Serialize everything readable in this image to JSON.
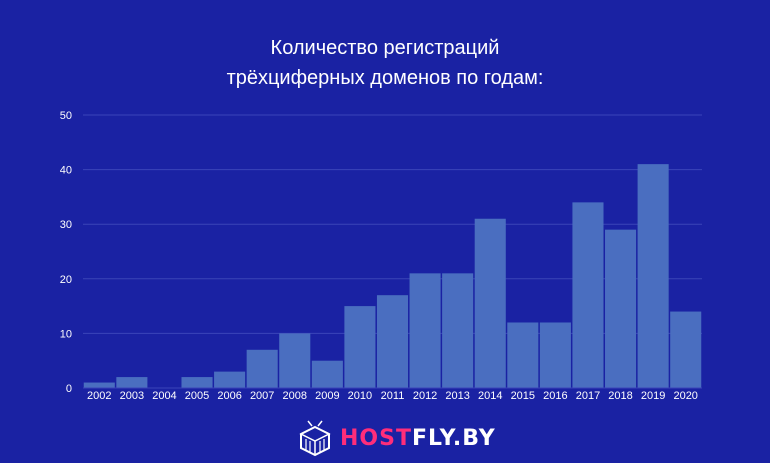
{
  "title_line1": "Количество регистраций",
  "title_line2": "трёхциферных доменов по годам:",
  "logo": {
    "part1": "HOST",
    "part2": "FLY.BY",
    "icon": "box-logo-icon"
  },
  "colors": {
    "background": "#1a22a3",
    "bar": "#4a6ec0",
    "grid": "#3a44b8",
    "text": "#ffffff"
  },
  "chart_data": {
    "type": "bar",
    "title": "Количество регистраций трёхциферных доменов по годам:",
    "categories": [
      "2002",
      "2003",
      "2004",
      "2005",
      "2006",
      "2007",
      "2008",
      "2009",
      "2010",
      "2011",
      "2012",
      "2013",
      "2014",
      "2015",
      "2016",
      "2017",
      "2018",
      "2019",
      "2020"
    ],
    "values": [
      1,
      2,
      0,
      2,
      3,
      7,
      10,
      5,
      15,
      17,
      21,
      21,
      31,
      12,
      12,
      34,
      29,
      41,
      14
    ],
    "yticks": [
      "0",
      "10",
      "20",
      "30",
      "40",
      "50"
    ],
    "ylim": [
      0,
      50
    ],
    "grid": true,
    "legend": "none"
  }
}
